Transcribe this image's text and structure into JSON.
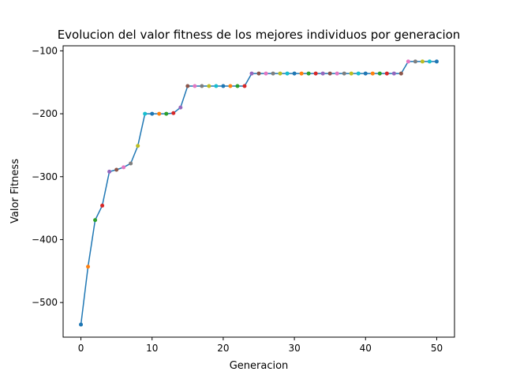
{
  "chart_data": {
    "type": "line",
    "title": "Evolucion del valor fitness de los mejores individuos por generacion",
    "xlabel": "Generacion",
    "ylabel": "Valor Fitness",
    "xlim": [
      -2.5,
      52.5
    ],
    "ylim": [
      -555,
      -92
    ],
    "xticks": [
      0,
      10,
      20,
      30,
      40,
      50
    ],
    "yticks": [
      -500,
      -400,
      -300,
      -200,
      -100
    ],
    "xtick_labels": [
      "0",
      "10",
      "20",
      "30",
      "40",
      "50"
    ],
    "ytick_labels": [
      "−500",
      "−400",
      "−300",
      "−200",
      "−100"
    ],
    "grid": false,
    "line_color": "#1f77b4",
    "point_colors": [
      "#1f77b4",
      "#ff7f0e",
      "#2ca02c",
      "#d62728",
      "#9467bd",
      "#8c564b",
      "#e377c2",
      "#7f7f7f",
      "#bcbd22",
      "#17becf"
    ],
    "x": [
      0,
      1,
      2,
      3,
      4,
      5,
      6,
      7,
      8,
      9,
      10,
      11,
      12,
      13,
      14,
      15,
      16,
      17,
      18,
      19,
      20,
      21,
      22,
      23,
      24,
      25,
      26,
      27,
      28,
      29,
      30,
      31,
      32,
      33,
      34,
      35,
      36,
      37,
      38,
      39,
      40,
      41,
      42,
      43,
      44,
      45,
      46,
      47,
      48,
      49,
      50
    ],
    "y": [
      -535,
      -443,
      -369,
      -346,
      -292,
      -289,
      -285,
      -279,
      -251,
      -200,
      -200,
      -200,
      -200,
      -199,
      -190,
      -156,
      -156,
      -156,
      -156,
      -156,
      -156,
      -156,
      -156,
      -156,
      -136,
      -136,
      -136,
      -136,
      -136,
      -136,
      -136,
      -136,
      -136,
      -136,
      -136,
      -136,
      -136,
      -136,
      -136,
      -136,
      -136,
      -136,
      -136,
      -136,
      -136,
      -136,
      -117,
      -117,
      -117,
      -117,
      -117
    ]
  }
}
